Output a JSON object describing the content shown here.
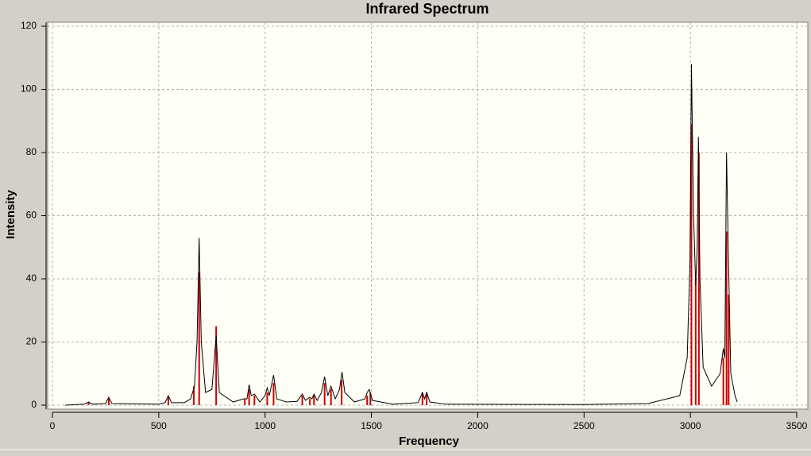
{
  "chart_data": {
    "type": "line",
    "title": "Infrared Spectrum",
    "x_label": "Frequency",
    "y_label": "Intensity",
    "xlim": [
      0,
      3500
    ],
    "xticks": [
      0,
      500,
      1000,
      1500,
      2000,
      2500,
      3000,
      3500
    ],
    "ylim": [
      0,
      120
    ],
    "yticks": [
      0,
      20,
      40,
      60,
      80,
      100,
      120
    ],
    "grid": true,
    "series": [
      {
        "type": "stick",
        "color": "#cc0000",
        "x": [
          170,
          265,
          545,
          665,
          690,
          770,
          905,
          925,
          950,
          1010,
          1040,
          1175,
          1210,
          1230,
          1280,
          1310,
          1360,
          1480,
          1495,
          1740,
          1760,
          3005,
          3025,
          3040,
          3155,
          3170,
          3180
        ],
        "values": [
          1,
          2,
          2.5,
          6,
          42,
          25,
          2,
          5,
          3,
          4,
          7,
          3,
          2,
          3,
          7,
          5,
          8,
          3,
          4,
          4,
          4,
          89,
          40,
          80,
          15,
          55,
          35
        ]
      },
      {
        "type": "line",
        "color": "#000000",
        "x": [
          60,
          150,
          170,
          190,
          250,
          265,
          280,
          500,
          530,
          545,
          560,
          620,
          650,
          668,
          680,
          690,
          700,
          720,
          750,
          770,
          785,
          850,
          900,
          915,
          925,
          935,
          950,
          975,
          1000,
          1010,
          1020,
          1040,
          1055,
          1100,
          1150,
          1175,
          1190,
          1210,
          1220,
          1230,
          1245,
          1265,
          1280,
          1295,
          1310,
          1330,
          1350,
          1362,
          1375,
          1420,
          1470,
          1480,
          1490,
          1505,
          1600,
          1720,
          1740,
          1750,
          1760,
          1775,
          1850,
          2500,
          2800,
          2950,
          2985,
          2998,
          3005,
          3015,
          3025,
          3032,
          3038,
          3045,
          3060,
          3100,
          3140,
          3155,
          3162,
          3170,
          3178,
          3190,
          3210,
          3220
        ],
        "values": [
          0,
          0.3,
          1,
          0.3,
          0.5,
          2.5,
          0.5,
          0.3,
          0.8,
          3,
          0.8,
          0.8,
          2,
          6,
          20,
          53,
          20,
          4,
          5,
          22,
          4,
          1,
          2,
          2,
          6.5,
          3,
          3.5,
          1,
          3,
          5.5,
          3,
          9.5,
          2,
          1,
          1.2,
          3.5,
          1.5,
          2.5,
          2,
          3.5,
          1.5,
          4,
          9,
          3,
          6,
          2,
          5,
          10.5,
          4,
          1,
          2,
          4,
          5,
          1.5,
          0.3,
          0.8,
          4,
          2,
          4,
          1,
          0.3,
          0.2,
          0.5,
          3,
          15,
          45,
          108,
          60,
          38,
          50,
          85,
          40,
          12,
          6,
          10,
          18,
          15,
          80,
          50,
          10,
          3,
          1
        ]
      }
    ]
  }
}
